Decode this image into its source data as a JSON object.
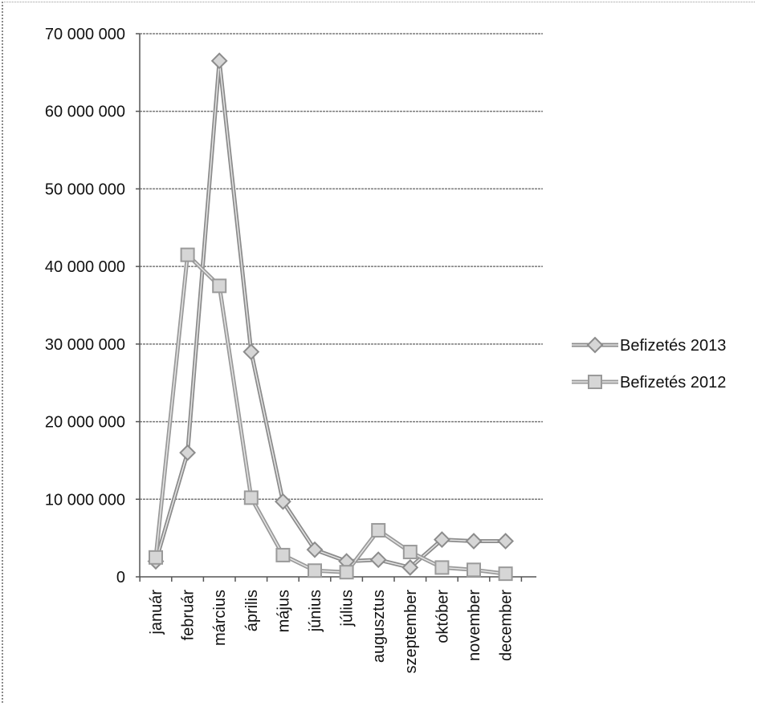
{
  "chart_data": {
    "type": "line",
    "categories": [
      "január",
      "február",
      "március",
      "április",
      "május",
      "június",
      "július",
      "augusztus",
      "szeptember",
      "október",
      "november",
      "december"
    ],
    "ylim": [
      0,
      70000000
    ],
    "yticks": [
      {
        "value": 0,
        "label": "0"
      },
      {
        "value": 10000000,
        "label": "10 000 000"
      },
      {
        "value": 20000000,
        "label": "20 000 000"
      },
      {
        "value": 30000000,
        "label": "30 000 000"
      },
      {
        "value": 40000000,
        "label": "40 000 000"
      },
      {
        "value": 50000000,
        "label": "50 000 000"
      },
      {
        "value": 60000000,
        "label": "60 000 000"
      },
      {
        "value": 70000000,
        "label": "70 000 000"
      }
    ],
    "grid": true,
    "legend_position": "right",
    "series": [
      {
        "name": "Befizetés 2013",
        "marker": "diamond",
        "color": "#8c8c8c",
        "values": [
          2000000,
          16000000,
          66500000,
          29000000,
          9700000,
          3500000,
          2000000,
          2200000,
          1200000,
          4800000,
          4600000,
          4600000
        ]
      },
      {
        "name": "Befizetés 2012",
        "marker": "square",
        "color": "#9a9a9a",
        "values": [
          2500000,
          41500000,
          37500000,
          10200000,
          2800000,
          800000,
          600000,
          6000000,
          3200000,
          1200000,
          900000,
          400000
        ]
      }
    ]
  }
}
